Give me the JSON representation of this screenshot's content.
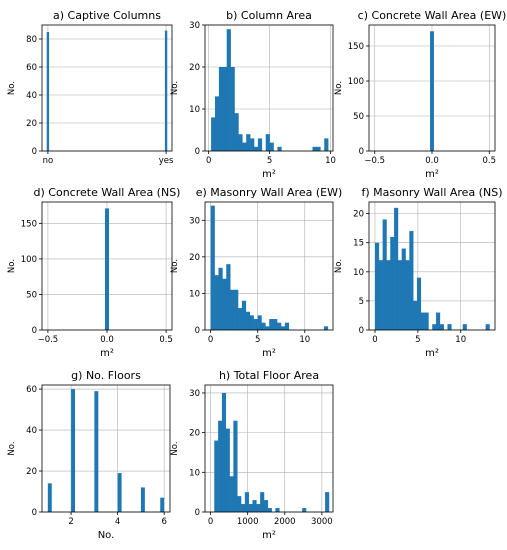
{
  "colors": {
    "bar": "#1f77b4",
    "grid": "#b0b0b0",
    "axis": "#000000",
    "text": "#000000"
  },
  "chart_data": [
    {
      "type": "bar",
      "title": "a) Captive Columns",
      "xlabel": "",
      "ylabel": "No.",
      "grid": true,
      "xlim": [
        -0.05,
        1.05
      ],
      "ylim": [
        0,
        90
      ],
      "xticks": [
        0,
        1
      ],
      "xtick_labels": [
        "no",
        "yes"
      ],
      "yticks": [
        0,
        20,
        40,
        60,
        80
      ],
      "bars": [
        {
          "x0": -0.01,
          "x1": 0.01,
          "value": 85
        },
        {
          "x0": 0.99,
          "x1": 1.01,
          "value": 86
        }
      ]
    },
    {
      "type": "bar",
      "title": "b) Column Area",
      "xlabel": "m²",
      "ylabel": "No.",
      "grid": true,
      "xlim": [
        -0.3,
        10.2
      ],
      "ylim": [
        0,
        30
      ],
      "xticks": [
        0,
        5,
        10
      ],
      "xtick_labels": [
        "0",
        "5",
        "10"
      ],
      "yticks": [
        0,
        10,
        20,
        30
      ],
      "bin_start": 0.2,
      "bin_width": 0.32,
      "values": [
        8,
        13,
        20,
        20,
        29,
        20,
        9,
        4,
        2,
        4,
        3,
        1,
        3,
        0,
        4,
        2,
        0,
        1,
        0,
        0,
        0,
        0,
        0,
        0,
        0,
        0,
        1,
        1,
        0,
        3
      ]
    },
    {
      "type": "bar",
      "title": "c) Concrete Wall Area (EW)",
      "xlabel": "m²",
      "ylabel": "No.",
      "grid": true,
      "xlim": [
        -0.55,
        0.55
      ],
      "ylim": [
        0,
        180
      ],
      "xticks": [
        -0.5,
        0,
        0.5
      ],
      "xtick_labels": [
        "−0.5",
        "0.0",
        "0.5"
      ],
      "yticks": [
        0,
        50,
        100,
        150
      ],
      "bars": [
        {
          "x0": -0.017,
          "x1": 0.017,
          "value": 171
        }
      ]
    },
    {
      "type": "bar",
      "title": "d) Concrete Wall Area (NS)",
      "xlabel": "m²",
      "ylabel": "No.",
      "grid": true,
      "xlim": [
        -0.55,
        0.55
      ],
      "ylim": [
        0,
        180
      ],
      "xticks": [
        -0.5,
        0,
        0.5
      ],
      "xtick_labels": [
        "−0.5",
        "0.0",
        "0.5"
      ],
      "yticks": [
        0,
        50,
        100,
        150
      ],
      "bars": [
        {
          "x0": -0.017,
          "x1": 0.017,
          "value": 171
        }
      ]
    },
    {
      "type": "bar",
      "title": "e) Masonry Wall Area (EW)",
      "xlabel": "m²",
      "ylabel": "No.",
      "grid": true,
      "xlim": [
        -0.6,
        13.0
      ],
      "ylim": [
        0,
        35
      ],
      "xticks": [
        0,
        5,
        10
      ],
      "xtick_labels": [
        "0",
        "5",
        "10"
      ],
      "yticks": [
        0,
        10,
        20,
        30
      ],
      "bin_start": 0.0,
      "bin_width": 0.415,
      "values": [
        34,
        15,
        17,
        14,
        18,
        11,
        11,
        6,
        8,
        5,
        4,
        3,
        4,
        2,
        1,
        3,
        3,
        2,
        1,
        2,
        0,
        0,
        0,
        0,
        0,
        0,
        0,
        0,
        0,
        1
      ]
    },
    {
      "type": "bar",
      "title": "f) Masonry Wall Area (NS)",
      "xlabel": "m²",
      "ylabel": "No.",
      "grid": true,
      "xlim": [
        -0.7,
        14.0
      ],
      "ylim": [
        0,
        22
      ],
      "xticks": [
        0,
        5,
        10
      ],
      "xtick_labels": [
        "0",
        "5",
        "10"
      ],
      "yticks": [
        0,
        5,
        10,
        15,
        20
      ],
      "bin_start": 0.0,
      "bin_width": 0.445,
      "values": [
        15,
        12,
        19,
        12,
        16,
        21,
        12,
        14,
        12,
        17,
        5,
        9,
        3,
        3,
        0,
        1,
        3,
        1,
        0,
        1,
        0,
        0,
        0,
        1,
        0,
        0,
        0,
        0,
        0,
        1
      ]
    },
    {
      "type": "bar",
      "title": "g) No. Floors",
      "xlabel": "No.",
      "ylabel": "No.",
      "grid": true,
      "xlim": [
        0.75,
        6.25
      ],
      "ylim": [
        0,
        62
      ],
      "xticks": [
        2,
        4,
        6
      ],
      "xtick_labels": [
        "2",
        "4",
        "6"
      ],
      "yticks": [
        0,
        20,
        40,
        60
      ],
      "bars": [
        {
          "x0": 1.0,
          "x1": 1.17,
          "value": 14
        },
        {
          "x0": 2.0,
          "x1": 2.17,
          "value": 60
        },
        {
          "x0": 3.0,
          "x1": 3.17,
          "value": 59
        },
        {
          "x0": 4.0,
          "x1": 4.17,
          "value": 19
        },
        {
          "x0": 5.0,
          "x1": 5.17,
          "value": 12
        },
        {
          "x0": 5.83,
          "x1": 6.0,
          "value": 7
        }
      ]
    },
    {
      "type": "bar",
      "title": "h) Total Floor Area",
      "xlabel": "m²",
      "ylabel": "No.",
      "grid": true,
      "xlim": [
        -150,
        3300
      ],
      "ylim": [
        0,
        32
      ],
      "xticks": [
        0,
        1000,
        2000,
        3000
      ],
      "xtick_labels": [
        "0",
        "1000",
        "2000",
        "3000"
      ],
      "yticks": [
        0,
        10,
        20,
        30
      ],
      "bin_start": 100,
      "bin_width": 103,
      "values": [
        18,
        23,
        30,
        21,
        9,
        23,
        4,
        2,
        5,
        2,
        3,
        2,
        5,
        3,
        1,
        0,
        1,
        0,
        0,
        0,
        0,
        0,
        0,
        1,
        0,
        0,
        0,
        0,
        0,
        5
      ]
    }
  ]
}
